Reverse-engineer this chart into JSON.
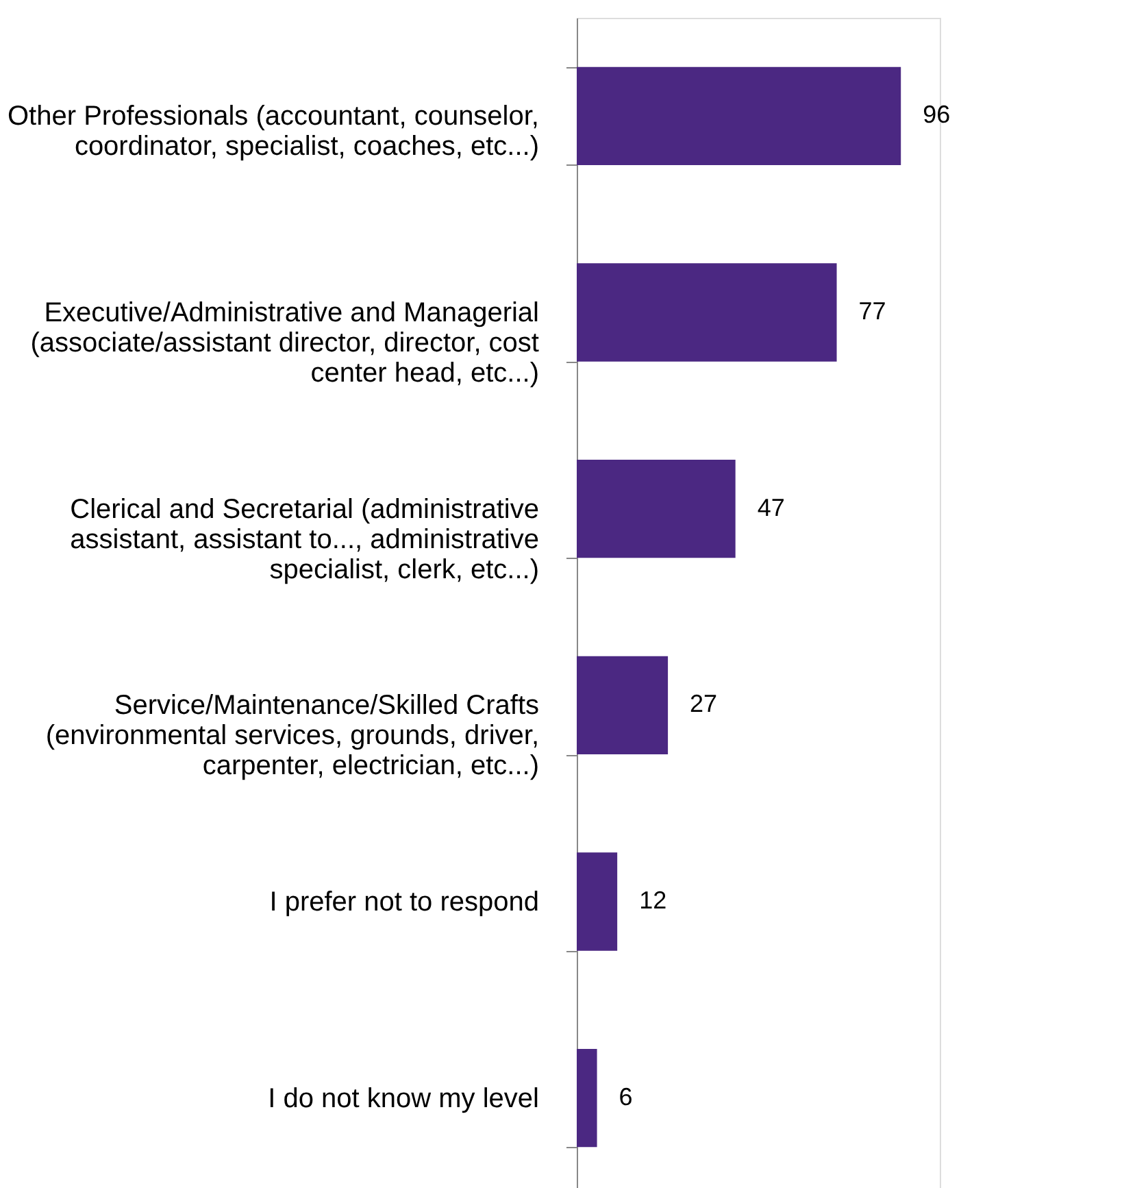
{
  "chart_data": {
    "type": "bar",
    "orientation": "horizontal",
    "categories": [
      "Other Professionals (accountant, counselor, coordinator, specialist, coaches, etc...)",
      "Executive/Administrative and Managerial (associate/assistant director, director, cost center head, etc...)",
      "Clerical and Secretarial (administrative assistant, assistant to..., administrative specialist, clerk, etc...)",
      "Service/Maintenance/Skilled Crafts (environmental services, grounds, driver, carpenter, electrician, etc...)",
      "I prefer not to respond",
      "I do not know my level"
    ],
    "values": [
      96,
      77,
      47,
      27,
      12,
      6
    ],
    "color": "#4b2882",
    "data_labels": true
  }
}
